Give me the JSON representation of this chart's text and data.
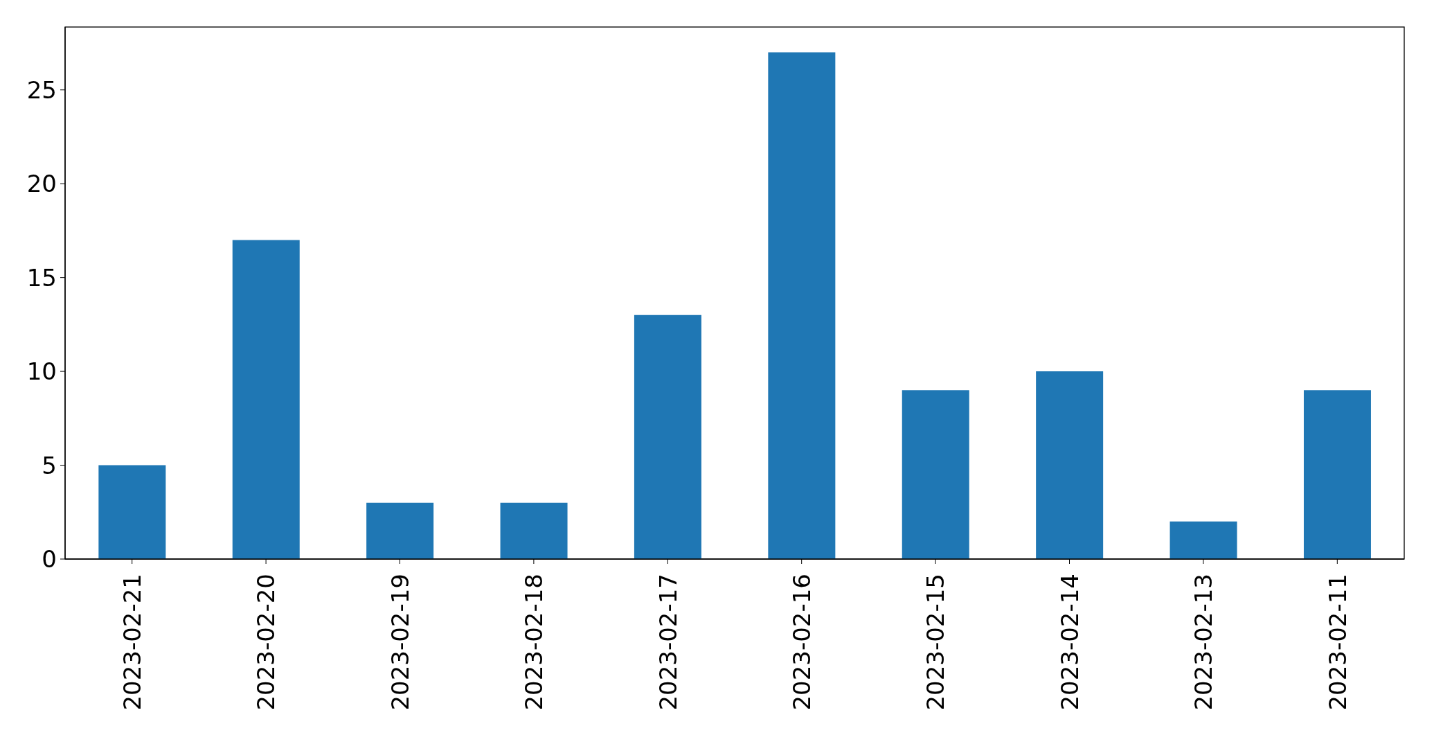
{
  "chart_data": {
    "type": "bar",
    "categories": [
      "2023-02-21",
      "2023-02-20",
      "2023-02-19",
      "2023-02-18",
      "2023-02-17",
      "2023-02-16",
      "2023-02-15",
      "2023-02-14",
      "2023-02-13",
      "2023-02-11"
    ],
    "values": [
      5,
      17,
      3,
      3,
      13,
      27,
      9,
      10,
      2,
      9
    ],
    "color": "#1f77b4",
    "ylim": [
      0,
      28.35
    ],
    "yticks": [
      0,
      5,
      10,
      15,
      20,
      25
    ]
  }
}
